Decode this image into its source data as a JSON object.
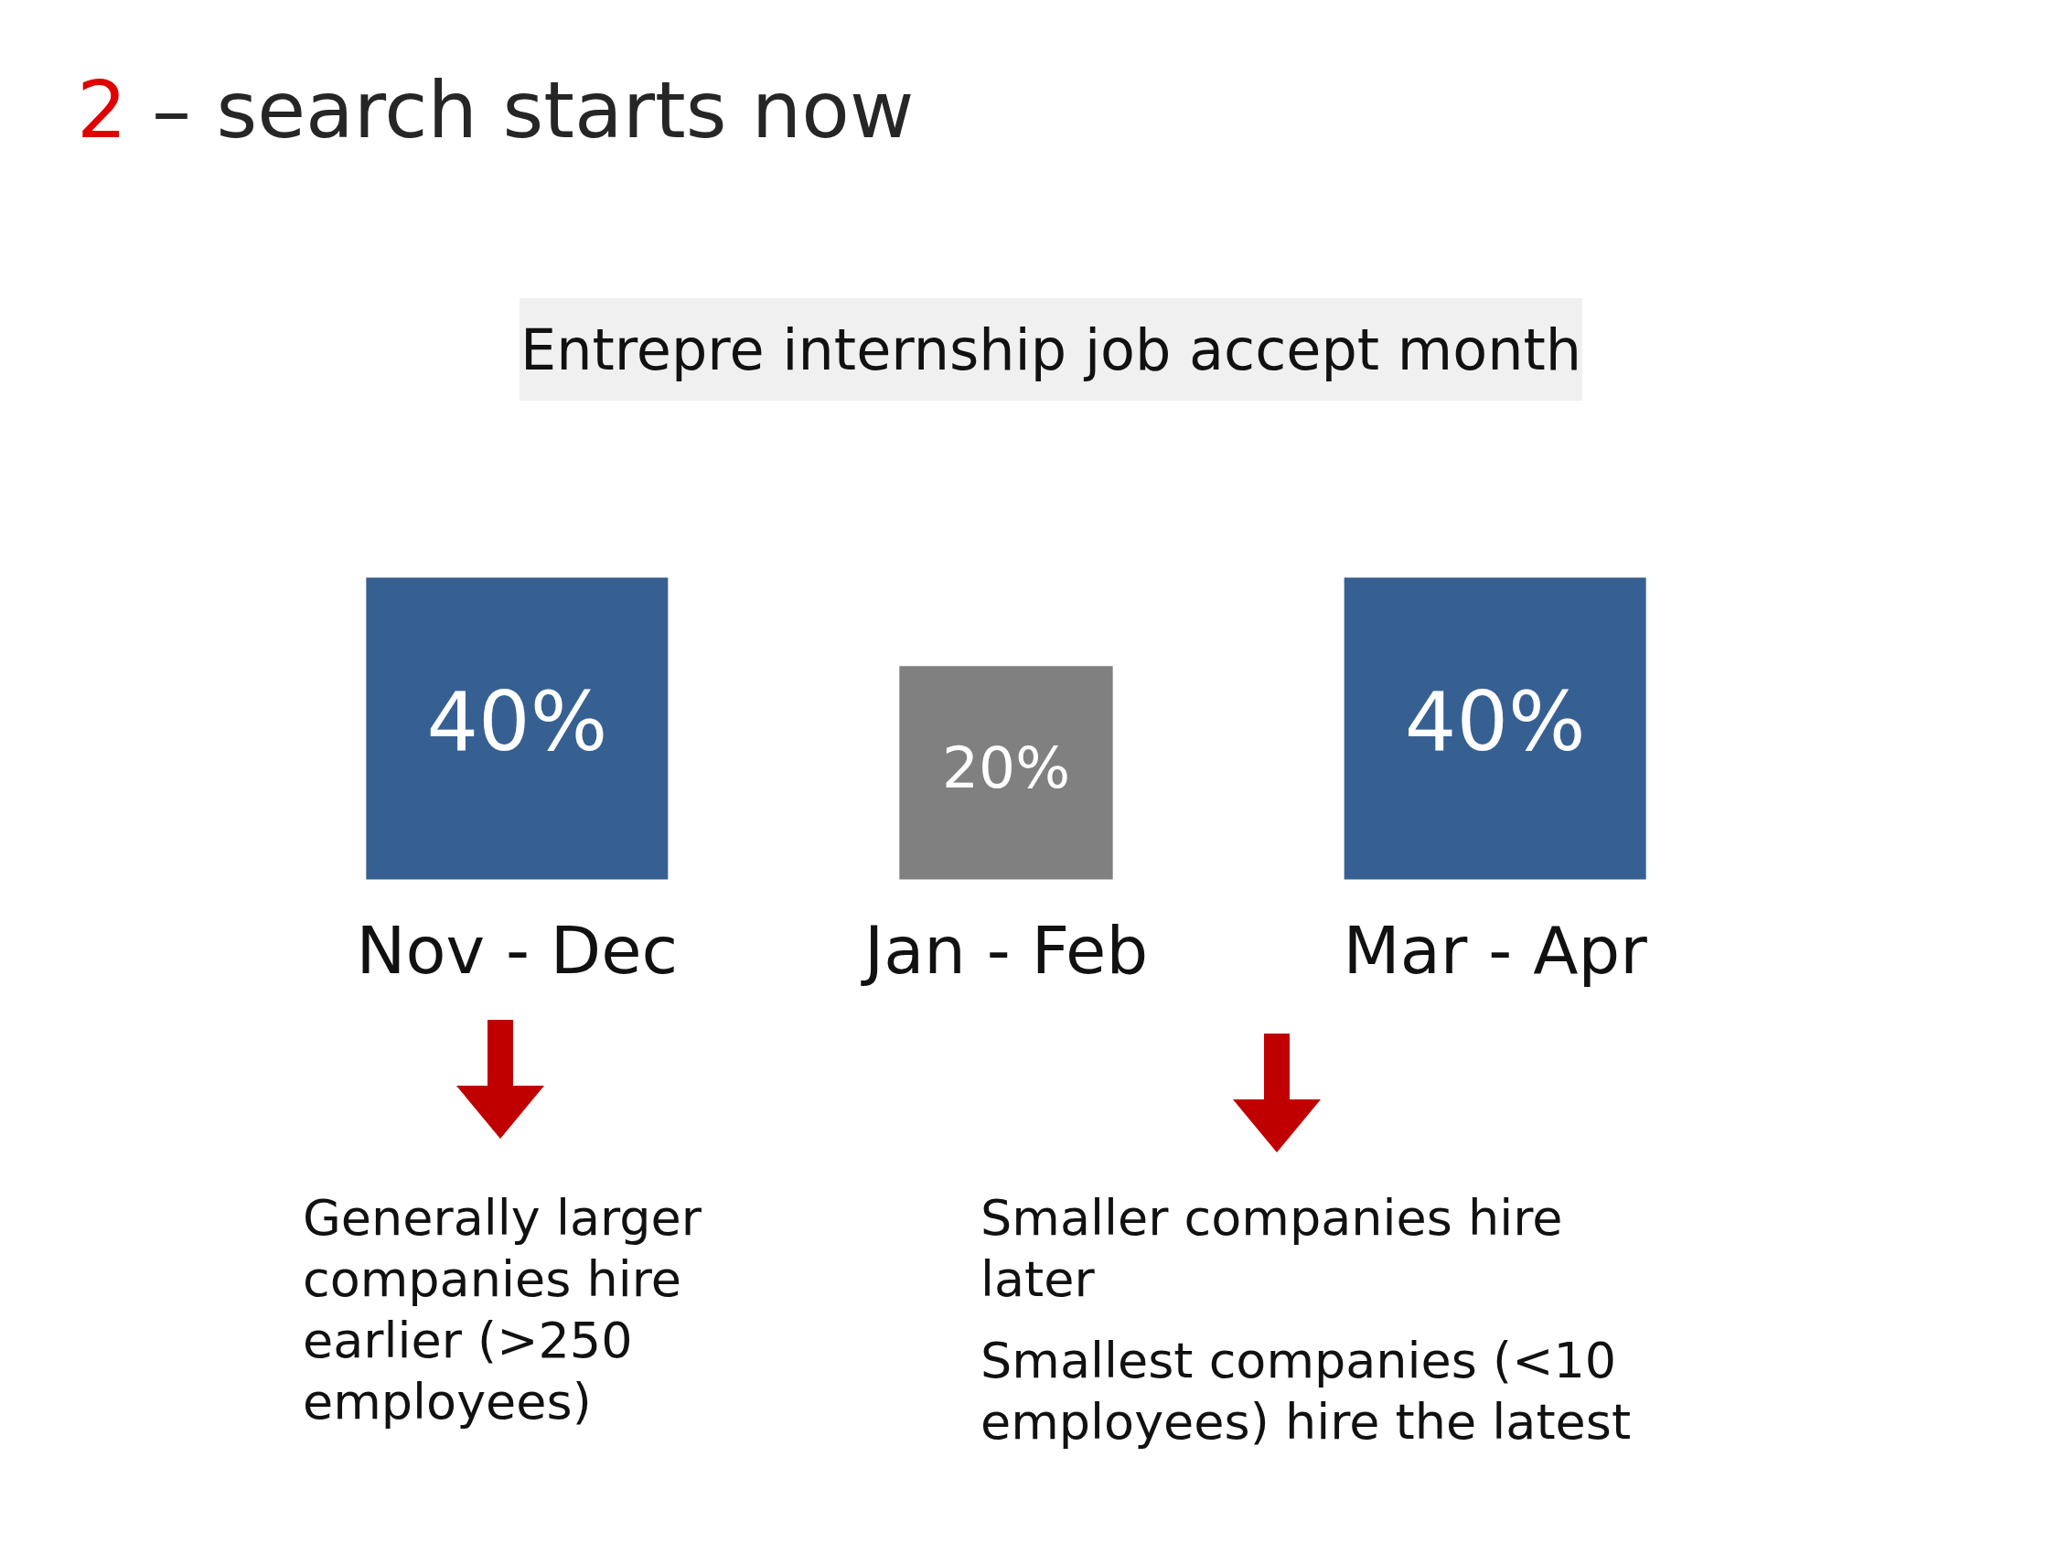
{
  "chart_data": {
    "type": "other",
    "title": "2 – search starts now",
    "subtitle": "Entrepre internship job accept month",
    "categories": [
      "Nov - Dec",
      "Jan - Feb",
      "Mar - Apr"
    ],
    "values": [
      40,
      20,
      40
    ],
    "colors": [
      "#376092",
      "#808080",
      "#376092"
    ],
    "value_labels": [
      "40%",
      "20%",
      "40%"
    ],
    "annotations": [
      "Generally larger companies hire earlier (>250 employees)",
      "Smaller companies hire later",
      "Smallest companies (<10 employees) hire the latest"
    ]
  }
}
